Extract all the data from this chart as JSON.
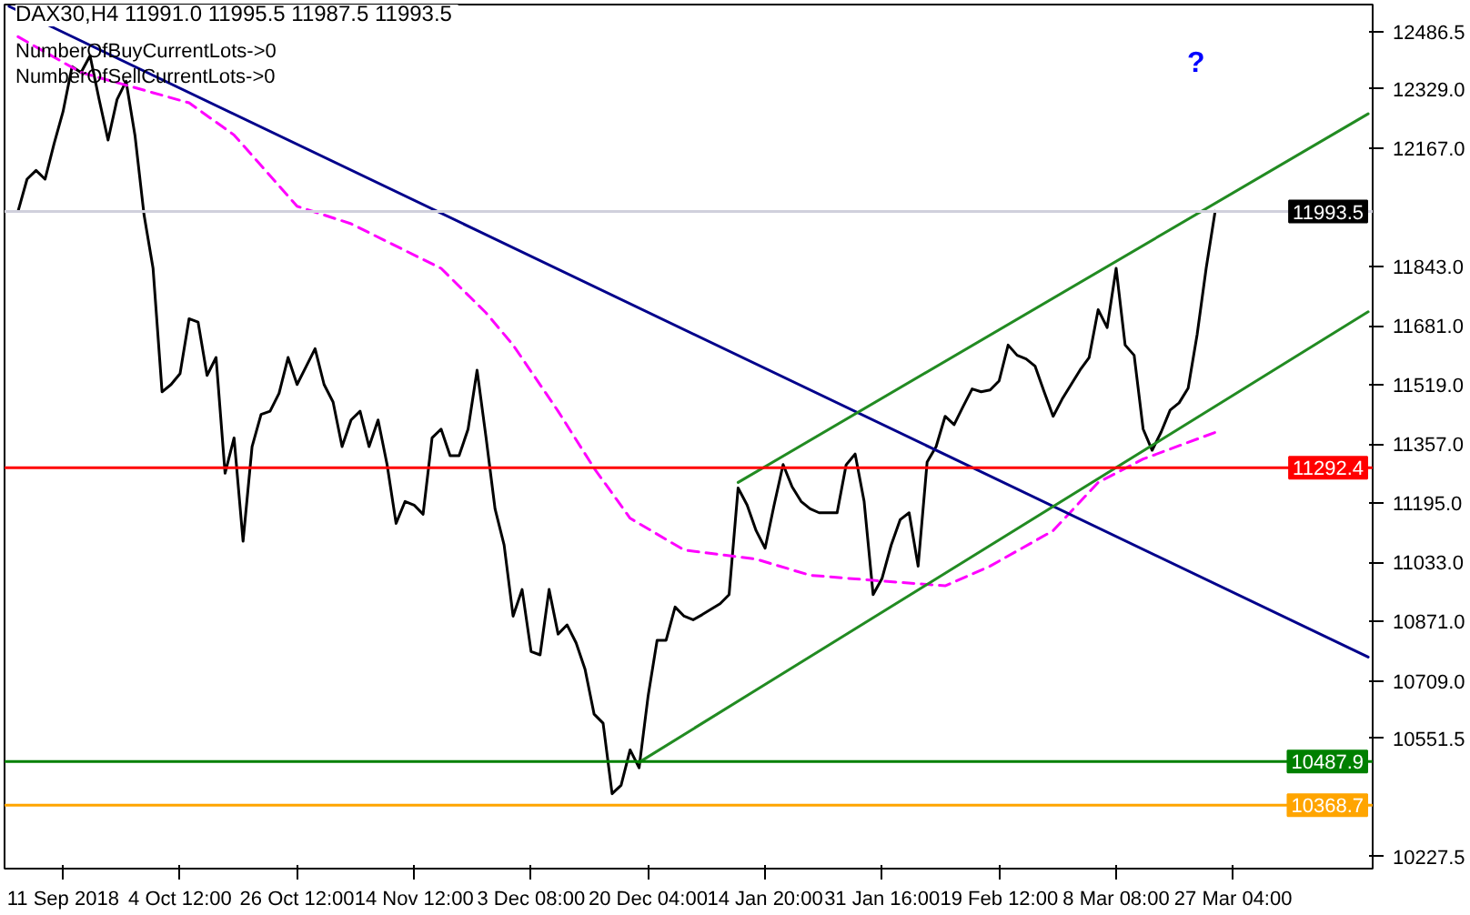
{
  "chart_data": {
    "type": "line",
    "annotations": [
      "DAX30,H4  11991.0 11995.5 11987.5 11993.5",
      "NumberOfBuyCurrentLots->0",
      "NumberOfSellCurrentLots->0",
      "?"
    ],
    "categories": [
      null,
      null,
      null,
      null,
      null,
      null,
      "11 Sep 2018",
      null,
      null,
      null,
      null,
      null,
      null,
      null,
      null,
      null,
      null,
      null,
      null,
      "4 Oct 12:00",
      null,
      null,
      null,
      null,
      null,
      null,
      null,
      null,
      null,
      null,
      null,
      null,
      "26 Oct 12:00",
      null,
      null,
      null,
      null,
      null,
      null,
      null,
      null,
      null,
      null,
      null,
      null,
      "14 Nov 12:00",
      null,
      null,
      null,
      null,
      null,
      null,
      null,
      null,
      null,
      null,
      null,
      null,
      "3 Dec 08:00",
      null,
      null,
      null,
      null,
      null,
      null,
      null,
      null,
      null,
      null,
      null,
      null,
      "20 Dec 04:00",
      null,
      null,
      null,
      null,
      null,
      null,
      null,
      null,
      null,
      null,
      null,
      null,
      "14 Jan 20:00",
      null,
      null,
      null,
      null,
      null,
      null,
      null,
      null,
      null,
      null,
      null,
      null,
      "31 Jan 16:00",
      null,
      null,
      null,
      null,
      null,
      null,
      null,
      null,
      null,
      null,
      null,
      null,
      "19 Feb 12:00",
      null,
      null,
      null,
      null,
      null,
      null,
      null,
      null,
      null,
      null,
      null,
      null,
      "8 Mar 08:00",
      null,
      null,
      null,
      null,
      null,
      null,
      null,
      null,
      null,
      null,
      null,
      null,
      "27 Mar 04:00",
      null,
      null,
      null,
      null,
      null,
      null,
      null,
      null,
      null,
      null,
      null,
      null,
      null,
      null,
      null
    ],
    "ylim": [
      10195,
      12560
    ],
    "yticks": [
      {
        "value": 12486.5,
        "label": "12486.5"
      },
      {
        "value": 12329,
        "label": "12329.0"
      },
      {
        "value": 12167,
        "label": "12167.0"
      },
      {
        "value": 11843,
        "label": "11843.0"
      },
      {
        "value": 11681,
        "label": "11681.0"
      },
      {
        "value": 11519,
        "label": "11519.0"
      },
      {
        "value": 11357,
        "label": "11357.0"
      },
      {
        "value": 11195,
        "label": "11195.0"
      },
      {
        "value": 11033,
        "label": "11033.0"
      },
      {
        "value": 10871,
        "label": "10871.0"
      },
      {
        "value": 10709,
        "label": "10709.0"
      },
      {
        "value": 10551.5,
        "label": "10551.5"
      },
      {
        "value": 10227.5,
        "label": "10227.5"
      }
    ],
    "grid": false,
    "ref_lines": [
      {
        "axis": "y",
        "value": 11993.5,
        "label": "11993.5",
        "color": "#d0d0dc"
      },
      {
        "axis": "y",
        "value": 11292.4,
        "label": "11292.4",
        "color": "#ff0000"
      },
      {
        "axis": "y",
        "value": 10487.9,
        "label": "10487.9",
        "color": "#008000"
      },
      {
        "axis": "y",
        "value": 10368.7,
        "label": "10368.7",
        "color": "#ffa500"
      }
    ],
    "series": [
      {
        "color": "#000000",
        "values": [
          null,
          11994,
          12082,
          12106,
          12082,
          12179,
          12267,
          12390,
          12374,
          12420,
          12301,
          12189,
          12300,
          12350,
          12200,
          11984,
          11838,
          11500,
          11520,
          11550,
          11700,
          11691,
          11545,
          11594,
          11277,
          11374,
          11091,
          11350,
          11438,
          11447,
          11496,
          11594,
          11520,
          11569,
          11618,
          11520,
          11472,
          11350,
          11423,
          11447,
          11350,
          11423,
          11301,
          11140,
          11200,
          11190,
          11165,
          11374,
          11398,
          11325,
          11325,
          11398,
          11559,
          11374,
          11179,
          11081,
          10886,
          10959,
          10789,
          10780,
          10959,
          10837,
          10862,
          10813,
          10740,
          10618,
          10593,
          10400,
          10423,
          10520,
          10471,
          10667,
          10820,
          10820,
          10911,
          10886,
          10876,
          10890,
          10905,
          10920,
          10945,
          11237,
          11190,
          11120,
          11072,
          11190,
          11301,
          11240,
          11200,
          11180,
          11169,
          11169,
          11169,
          11300,
          11330,
          11200,
          10945,
          10990,
          11080,
          11150,
          11169,
          11023,
          11308,
          11350,
          11433,
          11410,
          11460,
          11508,
          11500,
          11505,
          11530,
          11628,
          11600,
          11590,
          11570,
          11500,
          11433,
          11480,
          11520,
          11560,
          11594,
          11725,
          11676,
          11838,
          11628,
          11600,
          11398,
          11340,
          11390,
          11450,
          11470,
          11510,
          11657,
          11838,
          11994,
          null,
          null,
          null,
          null,
          null,
          null,
          null,
          null,
          null,
          null,
          null,
          null,
          null,
          null,
          null,
          null,
          null
        ]
      },
      {
        "color": "#ff00ff",
        "line_style": "dashed",
        "values": [
          null,
          12472,
          null,
          null,
          null,
          null,
          null,
          null,
          12374,
          null,
          null,
          null,
          null,
          null,
          null,
          null,
          null,
          null,
          null,
          null,
          12291,
          null,
          null,
          null,
          null,
          12203,
          null,
          null,
          null,
          null,
          null,
          null,
          12008,
          null,
          null,
          null,
          null,
          null,
          11960,
          null,
          null,
          null,
          null,
          null,
          null,
          null,
          null,
          null,
          11838,
          null,
          null,
          null,
          null,
          11716,
          null,
          null,
          11628,
          null,
          null,
          null,
          null,
          11447,
          null,
          null,
          null,
          11291,
          null,
          null,
          null,
          11154,
          null,
          null,
          null,
          null,
          null,
          11067,
          null,
          null,
          null,
          null,
          null,
          null,
          null,
          11042,
          null,
          null,
          null,
          null,
          null,
          10998,
          null,
          null,
          null,
          null,
          null,
          null,
          10984,
          null,
          null,
          null,
          null,
          null,
          null,
          null,
          10969,
          null,
          null,
          null,
          null,
          11023,
          null,
          null,
          null,
          null,
          null,
          null,
          11120,
          null,
          null,
          null,
          null,
          11252,
          null,
          null,
          null,
          null,
          11316,
          null,
          null,
          null,
          null,
          null,
          null,
          null,
          11389,
          null,
          null,
          null,
          null,
          null,
          null,
          null,
          null,
          null,
          null,
          null,
          null,
          null,
          null,
          null,
          null,
          null
        ]
      },
      {
        "color": "#00008b",
        "values": [
          12555,
          null,
          null,
          null,
          null,
          null,
          null,
          null,
          null,
          null,
          null,
          null,
          null,
          null,
          null,
          null,
          null,
          null,
          null,
          null,
          null,
          null,
          null,
          null,
          null,
          null,
          null,
          null,
          null,
          null,
          null,
          null,
          null,
          null,
          null,
          null,
          null,
          null,
          null,
          null,
          null,
          null,
          null,
          null,
          null,
          null,
          null,
          null,
          null,
          null,
          null,
          null,
          null,
          null,
          null,
          null,
          null,
          null,
          null,
          null,
          null,
          null,
          null,
          null,
          null,
          null,
          null,
          null,
          null,
          null,
          null,
          null,
          null,
          null,
          null,
          null,
          null,
          null,
          null,
          null,
          null,
          null,
          null,
          null,
          null,
          null,
          null,
          null,
          null,
          null,
          null,
          null,
          null,
          null,
          null,
          null,
          null,
          null,
          null,
          null,
          null,
          null,
          null,
          null,
          null,
          null,
          null,
          null,
          null,
          null,
          null,
          null,
          null,
          null,
          null,
          null,
          null,
          null,
          null,
          null,
          null,
          null,
          null,
          null,
          null,
          null,
          null,
          null,
          null,
          null,
          null,
          null,
          null,
          null,
          null,
          null,
          null,
          null,
          null,
          null,
          null,
          null,
          null,
          null,
          null,
          null,
          null,
          null,
          null,
          null,
          null,
          10774
        ]
      },
      {
        "color": "#228b22",
        "values": [
          null,
          null,
          null,
          null,
          null,
          null,
          null,
          null,
          null,
          null,
          null,
          null,
          null,
          null,
          null,
          null,
          null,
          null,
          null,
          null,
          null,
          null,
          null,
          null,
          null,
          null,
          null,
          null,
          null,
          null,
          null,
          null,
          null,
          null,
          null,
          null,
          null,
          null,
          null,
          null,
          null,
          null,
          null,
          null,
          null,
          null,
          null,
          null,
          null,
          null,
          null,
          null,
          null,
          null,
          null,
          null,
          null,
          null,
          null,
          null,
          null,
          null,
          null,
          null,
          null,
          null,
          null,
          null,
          null,
          null,
          null,
          null,
          null,
          null,
          null,
          null,
          null,
          null,
          null,
          null,
          null,
          11252,
          null,
          null,
          null,
          null,
          null,
          null,
          null,
          null,
          null,
          null,
          null,
          null,
          null,
          null,
          null,
          null,
          null,
          null,
          null,
          null,
          null,
          null,
          null,
          null,
          null,
          null,
          null,
          null,
          null,
          null,
          null,
          null,
          null,
          null,
          null,
          null,
          null,
          null,
          null,
          null,
          null,
          null,
          null,
          null,
          null,
          null,
          null,
          null,
          null,
          null,
          null,
          null,
          null,
          null,
          null,
          null,
          null,
          null,
          null,
          null,
          null,
          null,
          null,
          null,
          null,
          null,
          null,
          null,
          null,
          12261
        ]
      },
      {
        "color": "#228b22",
        "values": [
          null,
          null,
          null,
          null,
          null,
          null,
          null,
          null,
          null,
          null,
          null,
          null,
          null,
          null,
          null,
          null,
          null,
          null,
          null,
          null,
          null,
          null,
          null,
          null,
          null,
          null,
          null,
          null,
          null,
          null,
          null,
          null,
          null,
          null,
          null,
          null,
          null,
          null,
          null,
          null,
          null,
          null,
          null,
          null,
          null,
          null,
          null,
          null,
          null,
          null,
          null,
          null,
          null,
          null,
          null,
          null,
          null,
          null,
          null,
          null,
          null,
          null,
          null,
          null,
          null,
          null,
          null,
          null,
          null,
          null,
          10486,
          null,
          null,
          null,
          null,
          null,
          null,
          null,
          null,
          null,
          null,
          null,
          null,
          null,
          null,
          null,
          null,
          null,
          null,
          null,
          null,
          null,
          null,
          null,
          null,
          null,
          null,
          null,
          null,
          null,
          null,
          null,
          null,
          null,
          null,
          null,
          null,
          null,
          null,
          null,
          null,
          null,
          null,
          null,
          null,
          null,
          null,
          null,
          null,
          null,
          null,
          null,
          null,
          null,
          null,
          null,
          null,
          null,
          null,
          null,
          null,
          null,
          null,
          null,
          null,
          null,
          null,
          null,
          null,
          null,
          null,
          null,
          null,
          null,
          null,
          null,
          null,
          null,
          null,
          null,
          null,
          11719
        ]
      }
    ]
  }
}
